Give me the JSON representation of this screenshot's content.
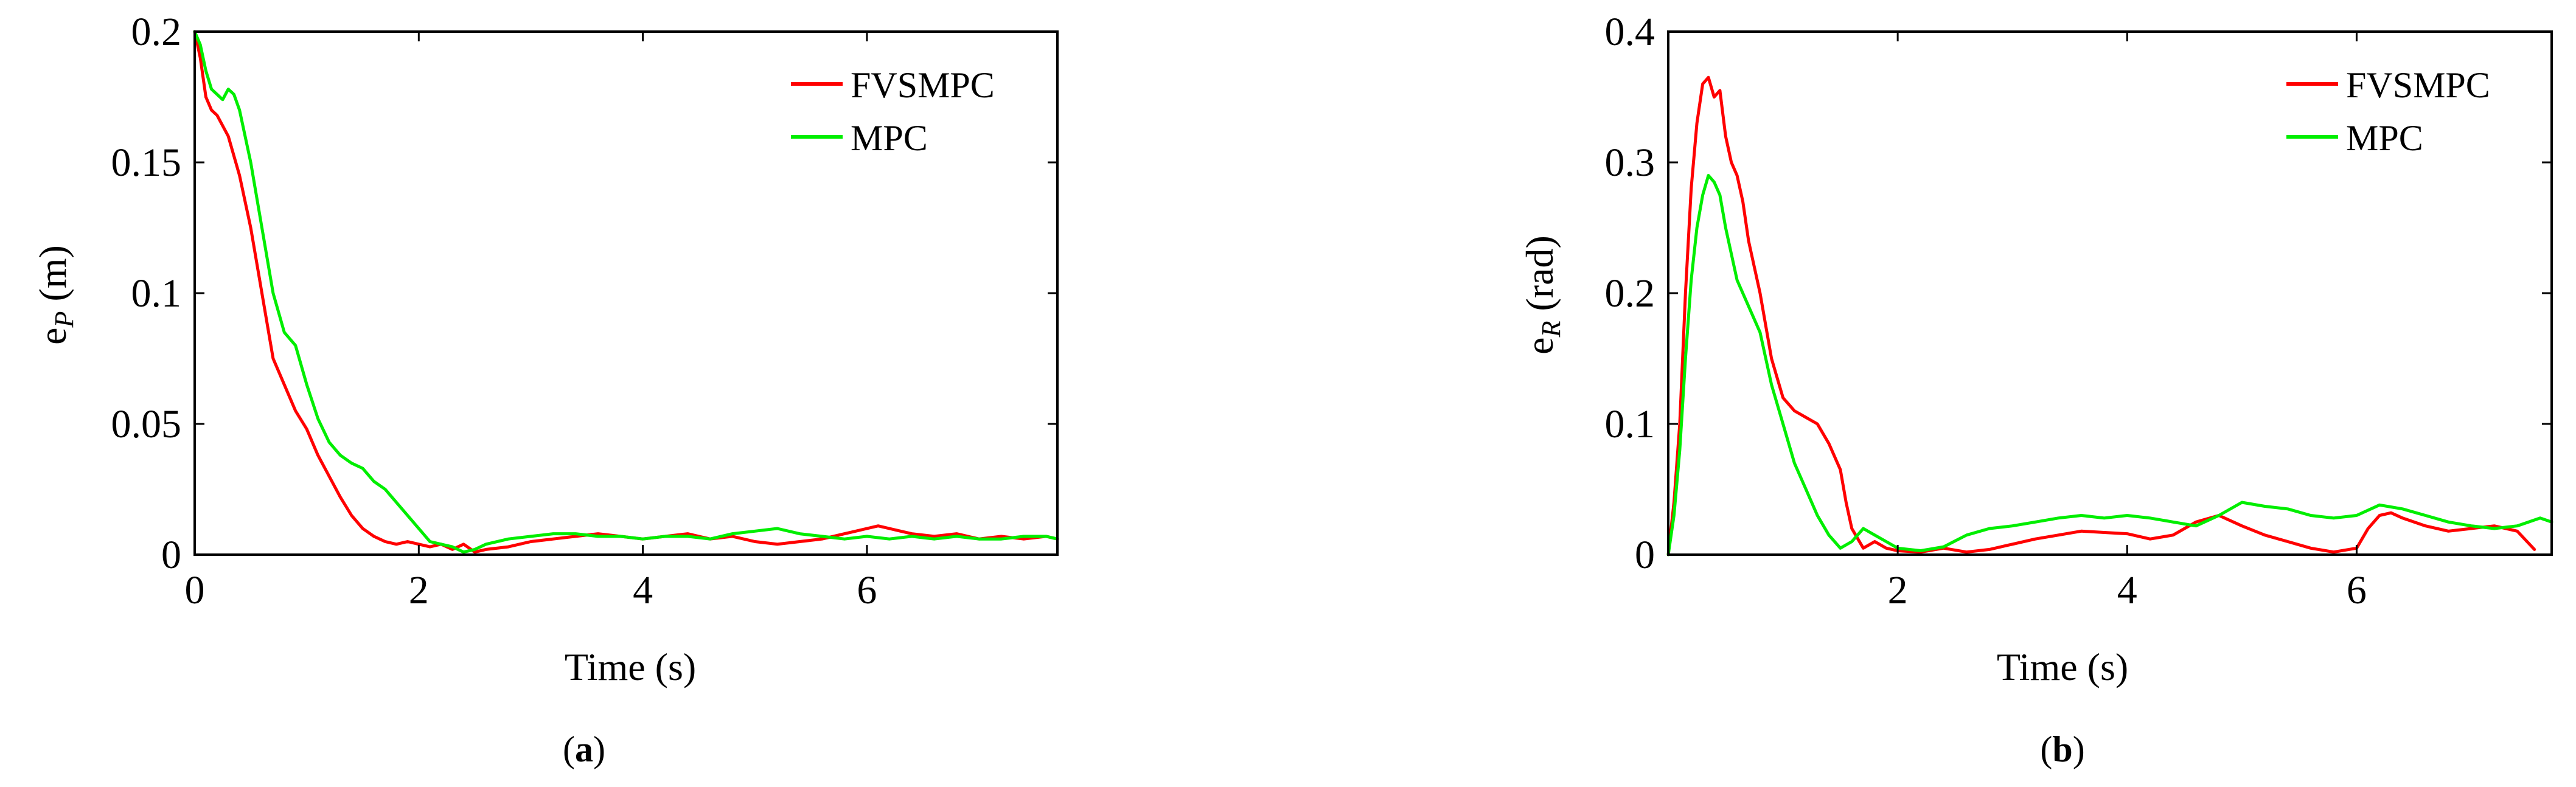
{
  "chart_data": [
    {
      "type": "line",
      "caption": {
        "open": "(",
        "letter": "a",
        "close": ")"
      },
      "xlabel": "Time (s)",
      "ylabel": {
        "base": "e",
        "sub": "P",
        "unit": " (m)"
      },
      "xlim": [
        0,
        7.7
      ],
      "ylim": [
        0,
        0.2
      ],
      "xticks": [
        0,
        2,
        4,
        6
      ],
      "xtick_labels": [
        "0",
        "2",
        "4",
        "6"
      ],
      "yticks": [
        0,
        0.05,
        0.1,
        0.15,
        0.2
      ],
      "ytick_labels": [
        "0",
        "0.05",
        "0.1",
        "0.15",
        "0.2"
      ],
      "grid": false,
      "legend_position": "top-right",
      "series": [
        {
          "name": "FVSMPC",
          "color": "#ff0000",
          "x": [
            0,
            0.05,
            0.1,
            0.15,
            0.2,
            0.3,
            0.4,
            0.5,
            0.6,
            0.7,
            0.8,
            0.9,
            1.0,
            1.1,
            1.2,
            1.3,
            1.4,
            1.5,
            1.6,
            1.7,
            1.8,
            1.9,
            2.0,
            2.1,
            2.2,
            2.3,
            2.4,
            2.5,
            2.6,
            2.8,
            3.0,
            3.2,
            3.4,
            3.6,
            3.8,
            4.0,
            4.2,
            4.4,
            4.6,
            4.8,
            5.0,
            5.2,
            5.4,
            5.6,
            5.8,
            6.0,
            6.1,
            6.2,
            6.3,
            6.4,
            6.6,
            6.8,
            7.0,
            7.2,
            7.4,
            7.6,
            7.7
          ],
          "y": [
            0.2,
            0.19,
            0.175,
            0.17,
            0.168,
            0.16,
            0.145,
            0.125,
            0.1,
            0.075,
            0.065,
            0.055,
            0.048,
            0.038,
            0.03,
            0.022,
            0.015,
            0.01,
            0.007,
            0.005,
            0.004,
            0.005,
            0.004,
            0.003,
            0.004,
            0.002,
            0.004,
            0.001,
            0.002,
            0.003,
            0.005,
            0.006,
            0.007,
            0.008,
            0.007,
            0.006,
            0.007,
            0.008,
            0.006,
            0.007,
            0.005,
            0.004,
            0.005,
            0.006,
            0.008,
            0.01,
            0.011,
            0.01,
            0.009,
            0.008,
            0.007,
            0.008,
            0.006,
            0.007,
            0.006,
            0.007,
            0.006
          ]
        },
        {
          "name": "MPC",
          "color": "#00ee00",
          "x": [
            0,
            0.05,
            0.1,
            0.15,
            0.2,
            0.25,
            0.3,
            0.35,
            0.4,
            0.5,
            0.6,
            0.7,
            0.8,
            0.9,
            1.0,
            1.1,
            1.2,
            1.3,
            1.4,
            1.5,
            1.6,
            1.7,
            1.8,
            1.9,
            2.0,
            2.1,
            2.2,
            2.3,
            2.4,
            2.5,
            2.6,
            2.8,
            3.0,
            3.2,
            3.4,
            3.6,
            3.8,
            4.0,
            4.2,
            4.4,
            4.6,
            4.8,
            5.0,
            5.2,
            5.4,
            5.6,
            5.8,
            6.0,
            6.2,
            6.4,
            6.6,
            6.8,
            7.0,
            7.2,
            7.4,
            7.6,
            7.7
          ],
          "y": [
            0.2,
            0.195,
            0.185,
            0.178,
            0.176,
            0.174,
            0.178,
            0.176,
            0.17,
            0.15,
            0.125,
            0.1,
            0.085,
            0.08,
            0.065,
            0.052,
            0.043,
            0.038,
            0.035,
            0.033,
            0.028,
            0.025,
            0.02,
            0.015,
            0.01,
            0.005,
            0.004,
            0.003,
            0.001,
            0.002,
            0.004,
            0.006,
            0.007,
            0.008,
            0.008,
            0.007,
            0.007,
            0.006,
            0.007,
            0.007,
            0.006,
            0.008,
            0.009,
            0.01,
            0.008,
            0.007,
            0.006,
            0.007,
            0.006,
            0.007,
            0.006,
            0.007,
            0.006,
            0.006,
            0.007,
            0.007,
            0.006
          ]
        }
      ]
    },
    {
      "type": "line",
      "caption": {
        "open": "(",
        "letter": "b",
        "close": ")"
      },
      "xlabel": "Time (s)",
      "ylabel": {
        "base": "e",
        "sub": "R",
        "unit": " (rad)"
      },
      "xlim": [
        0,
        7.7
      ],
      "ylim": [
        0,
        0.4
      ],
      "xticks": [
        2,
        4,
        6
      ],
      "xtick_labels": [
        "2",
        "4",
        "6"
      ],
      "yticks": [
        0,
        0.1,
        0.2,
        0.3,
        0.4
      ],
      "ytick_labels": [
        "0",
        "0.1",
        "0.2",
        "0.3",
        "0.4"
      ],
      "grid": false,
      "legend_position": "top-right",
      "series": [
        {
          "name": "FVSMPC",
          "color": "#ff0000",
          "x": [
            0,
            0.05,
            0.1,
            0.15,
            0.2,
            0.25,
            0.3,
            0.35,
            0.4,
            0.45,
            0.5,
            0.55,
            0.6,
            0.65,
            0.7,
            0.8,
            0.9,
            1.0,
            1.1,
            1.2,
            1.3,
            1.4,
            1.5,
            1.55,
            1.6,
            1.7,
            1.8,
            1.9,
            2.0,
            2.2,
            2.4,
            2.6,
            2.8,
            3.0,
            3.2,
            3.4,
            3.6,
            3.8,
            4.0,
            4.2,
            4.4,
            4.6,
            4.8,
            5.0,
            5.2,
            5.4,
            5.6,
            5.8,
            6.0,
            6.1,
            6.2,
            6.3,
            6.4,
            6.6,
            6.8,
            7.0,
            7.2,
            7.4,
            7.55
          ],
          "y": [
            0,
            0.04,
            0.1,
            0.2,
            0.28,
            0.33,
            0.36,
            0.365,
            0.35,
            0.355,
            0.32,
            0.3,
            0.29,
            0.27,
            0.24,
            0.2,
            0.15,
            0.12,
            0.11,
            0.105,
            0.1,
            0.085,
            0.065,
            0.04,
            0.02,
            0.005,
            0.01,
            0.005,
            0.003,
            0.002,
            0.005,
            0.002,
            0.004,
            0.008,
            0.012,
            0.015,
            0.018,
            0.017,
            0.016,
            0.012,
            0.015,
            0.025,
            0.03,
            0.022,
            0.015,
            0.01,
            0.005,
            0.002,
            0.005,
            0.02,
            0.03,
            0.032,
            0.028,
            0.022,
            0.018,
            0.02,
            0.022,
            0.018,
            0.004
          ]
        },
        {
          "name": "MPC",
          "color": "#00ee00",
          "x": [
            0,
            0.05,
            0.1,
            0.15,
            0.2,
            0.25,
            0.3,
            0.35,
            0.4,
            0.45,
            0.5,
            0.55,
            0.6,
            0.7,
            0.8,
            0.9,
            1.0,
            1.1,
            1.2,
            1.3,
            1.4,
            1.5,
            1.6,
            1.7,
            1.8,
            1.9,
            2.0,
            2.2,
            2.4,
            2.6,
            2.8,
            3.0,
            3.2,
            3.4,
            3.6,
            3.8,
            4.0,
            4.2,
            4.4,
            4.6,
            4.8,
            5.0,
            5.2,
            5.4,
            5.6,
            5.8,
            6.0,
            6.2,
            6.4,
            6.6,
            6.8,
            7.0,
            7.2,
            7.4,
            7.6,
            7.7
          ],
          "y": [
            0,
            0.03,
            0.08,
            0.15,
            0.21,
            0.25,
            0.275,
            0.29,
            0.285,
            0.275,
            0.25,
            0.23,
            0.21,
            0.19,
            0.17,
            0.13,
            0.1,
            0.07,
            0.05,
            0.03,
            0.015,
            0.005,
            0.01,
            0.02,
            0.015,
            0.01,
            0.005,
            0.003,
            0.006,
            0.015,
            0.02,
            0.022,
            0.025,
            0.028,
            0.03,
            0.028,
            0.03,
            0.028,
            0.025,
            0.022,
            0.03,
            0.04,
            0.037,
            0.035,
            0.03,
            0.028,
            0.03,
            0.038,
            0.035,
            0.03,
            0.025,
            0.022,
            0.02,
            0.022,
            0.028,
            0.025
          ]
        }
      ]
    }
  ]
}
